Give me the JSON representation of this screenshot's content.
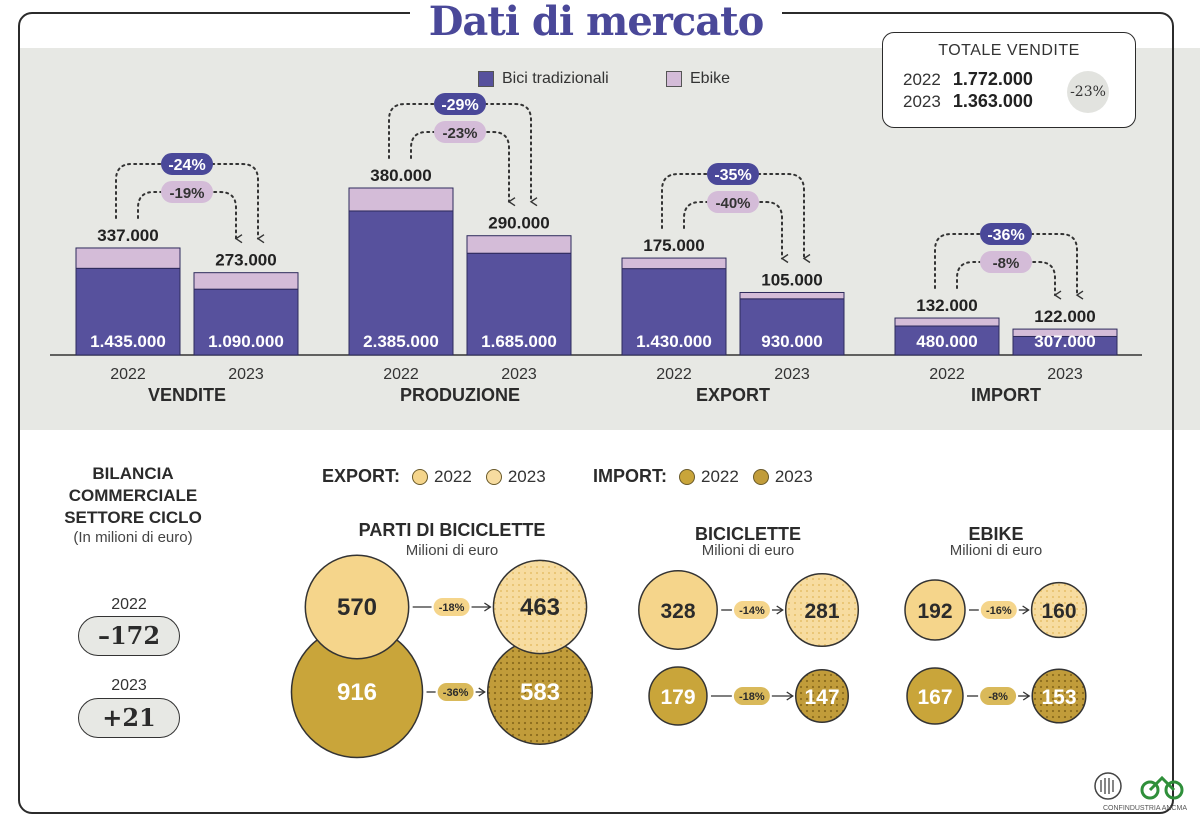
{
  "title": "Dati di mercato",
  "totale_vendite": {
    "label": "TOTALE VENDITE",
    "rows": [
      {
        "year": "2022",
        "value": "1.772.000"
      },
      {
        "year": "2023",
        "value": "1.363.000"
      }
    ],
    "change": "-23%"
  },
  "colors": {
    "bici": "#57519d",
    "ebike": "#d4bcd8",
    "export22": "#f5d58b",
    "export23": "#f7dca0",
    "import22": "#c9a53a",
    "import23": "#c19c3a",
    "purple_pill": "#4a4899",
    "pink_pill": "#d4bcd8"
  },
  "chart_data": [
    {
      "type": "bar",
      "stacked": true,
      "legend": [
        "Bici tradizionali",
        "Ebike"
      ],
      "groups": [
        {
          "name": "VENDITE",
          "years": [
            "2022",
            "2023"
          ],
          "bici": [
            1435000,
            1090000
          ],
          "ebike": [
            337000,
            273000
          ],
          "bici_labels": [
            "1.435.000",
            "1.090.000"
          ],
          "ebike_labels": [
            "337.000",
            "273.000"
          ],
          "pct_total": "-24%",
          "pct_ebike": "-19%"
        },
        {
          "name": "PRODUZIONE",
          "years": [
            "2022",
            "2023"
          ],
          "bici": [
            2385000,
            1685000
          ],
          "ebike": [
            380000,
            290000
          ],
          "bici_labels": [
            "2.385.000",
            "1.685.000"
          ],
          "ebike_labels": [
            "380.000",
            "290.000"
          ],
          "pct_total": "-29%",
          "pct_ebike": "-23%"
        },
        {
          "name": "EXPORT",
          "years": [
            "2022",
            "2023"
          ],
          "bici": [
            1430000,
            930000
          ],
          "ebike": [
            175000,
            105000
          ],
          "bici_labels": [
            "1.430.000",
            "930.000"
          ],
          "ebike_labels": [
            "175.000",
            "105.000"
          ],
          "pct_total": "-35%",
          "pct_ebike": "-40%"
        },
        {
          "name": "IMPORT",
          "years": [
            "2022",
            "2023"
          ],
          "bici": [
            480000,
            307000
          ],
          "ebike": [
            132000,
            122000
          ],
          "bici_labels": [
            "480.000",
            "307.000"
          ],
          "ebike_labels": [
            "132.000",
            "122.000"
          ],
          "pct_total": "-36%",
          "pct_ebike": "-8%"
        }
      ]
    },
    {
      "type": "bubble",
      "legend": [
        {
          "group": "EXPORT:",
          "items": [
            "2022",
            "2023"
          ]
        },
        {
          "group": "IMPORT:",
          "items": [
            "2022",
            "2023"
          ]
        }
      ],
      "sections": [
        {
          "title": "PARTI DI BICICLETTE",
          "subtitle": "Milioni di euro",
          "export": [
            570,
            463
          ],
          "export_pct": "-18%",
          "import": [
            916,
            583
          ],
          "import_pct": "-36%"
        },
        {
          "title": "BICICLETTE",
          "subtitle": "Milioni di euro",
          "export": [
            328,
            281
          ],
          "export_pct": "-14%",
          "import": [
            179,
            147
          ],
          "import_pct": "-18%"
        },
        {
          "title": "EBIKE",
          "subtitle": "Milioni di euro",
          "export": [
            192,
            160
          ],
          "export_pct": "-16%",
          "import": [
            167,
            153
          ],
          "import_pct": "-8%"
        }
      ]
    }
  ],
  "bilancia": {
    "title_lines": [
      "BILANCIA",
      "COMMERCIALE",
      "SETTORE CICLO"
    ],
    "subtitle": "(In milioni di euro)",
    "rows": [
      {
        "year": "2022",
        "value": "–172"
      },
      {
        "year": "2023",
        "value": "+21"
      }
    ]
  },
  "logos": {
    "text": "CONFINDUSTRIA ANCMA"
  }
}
